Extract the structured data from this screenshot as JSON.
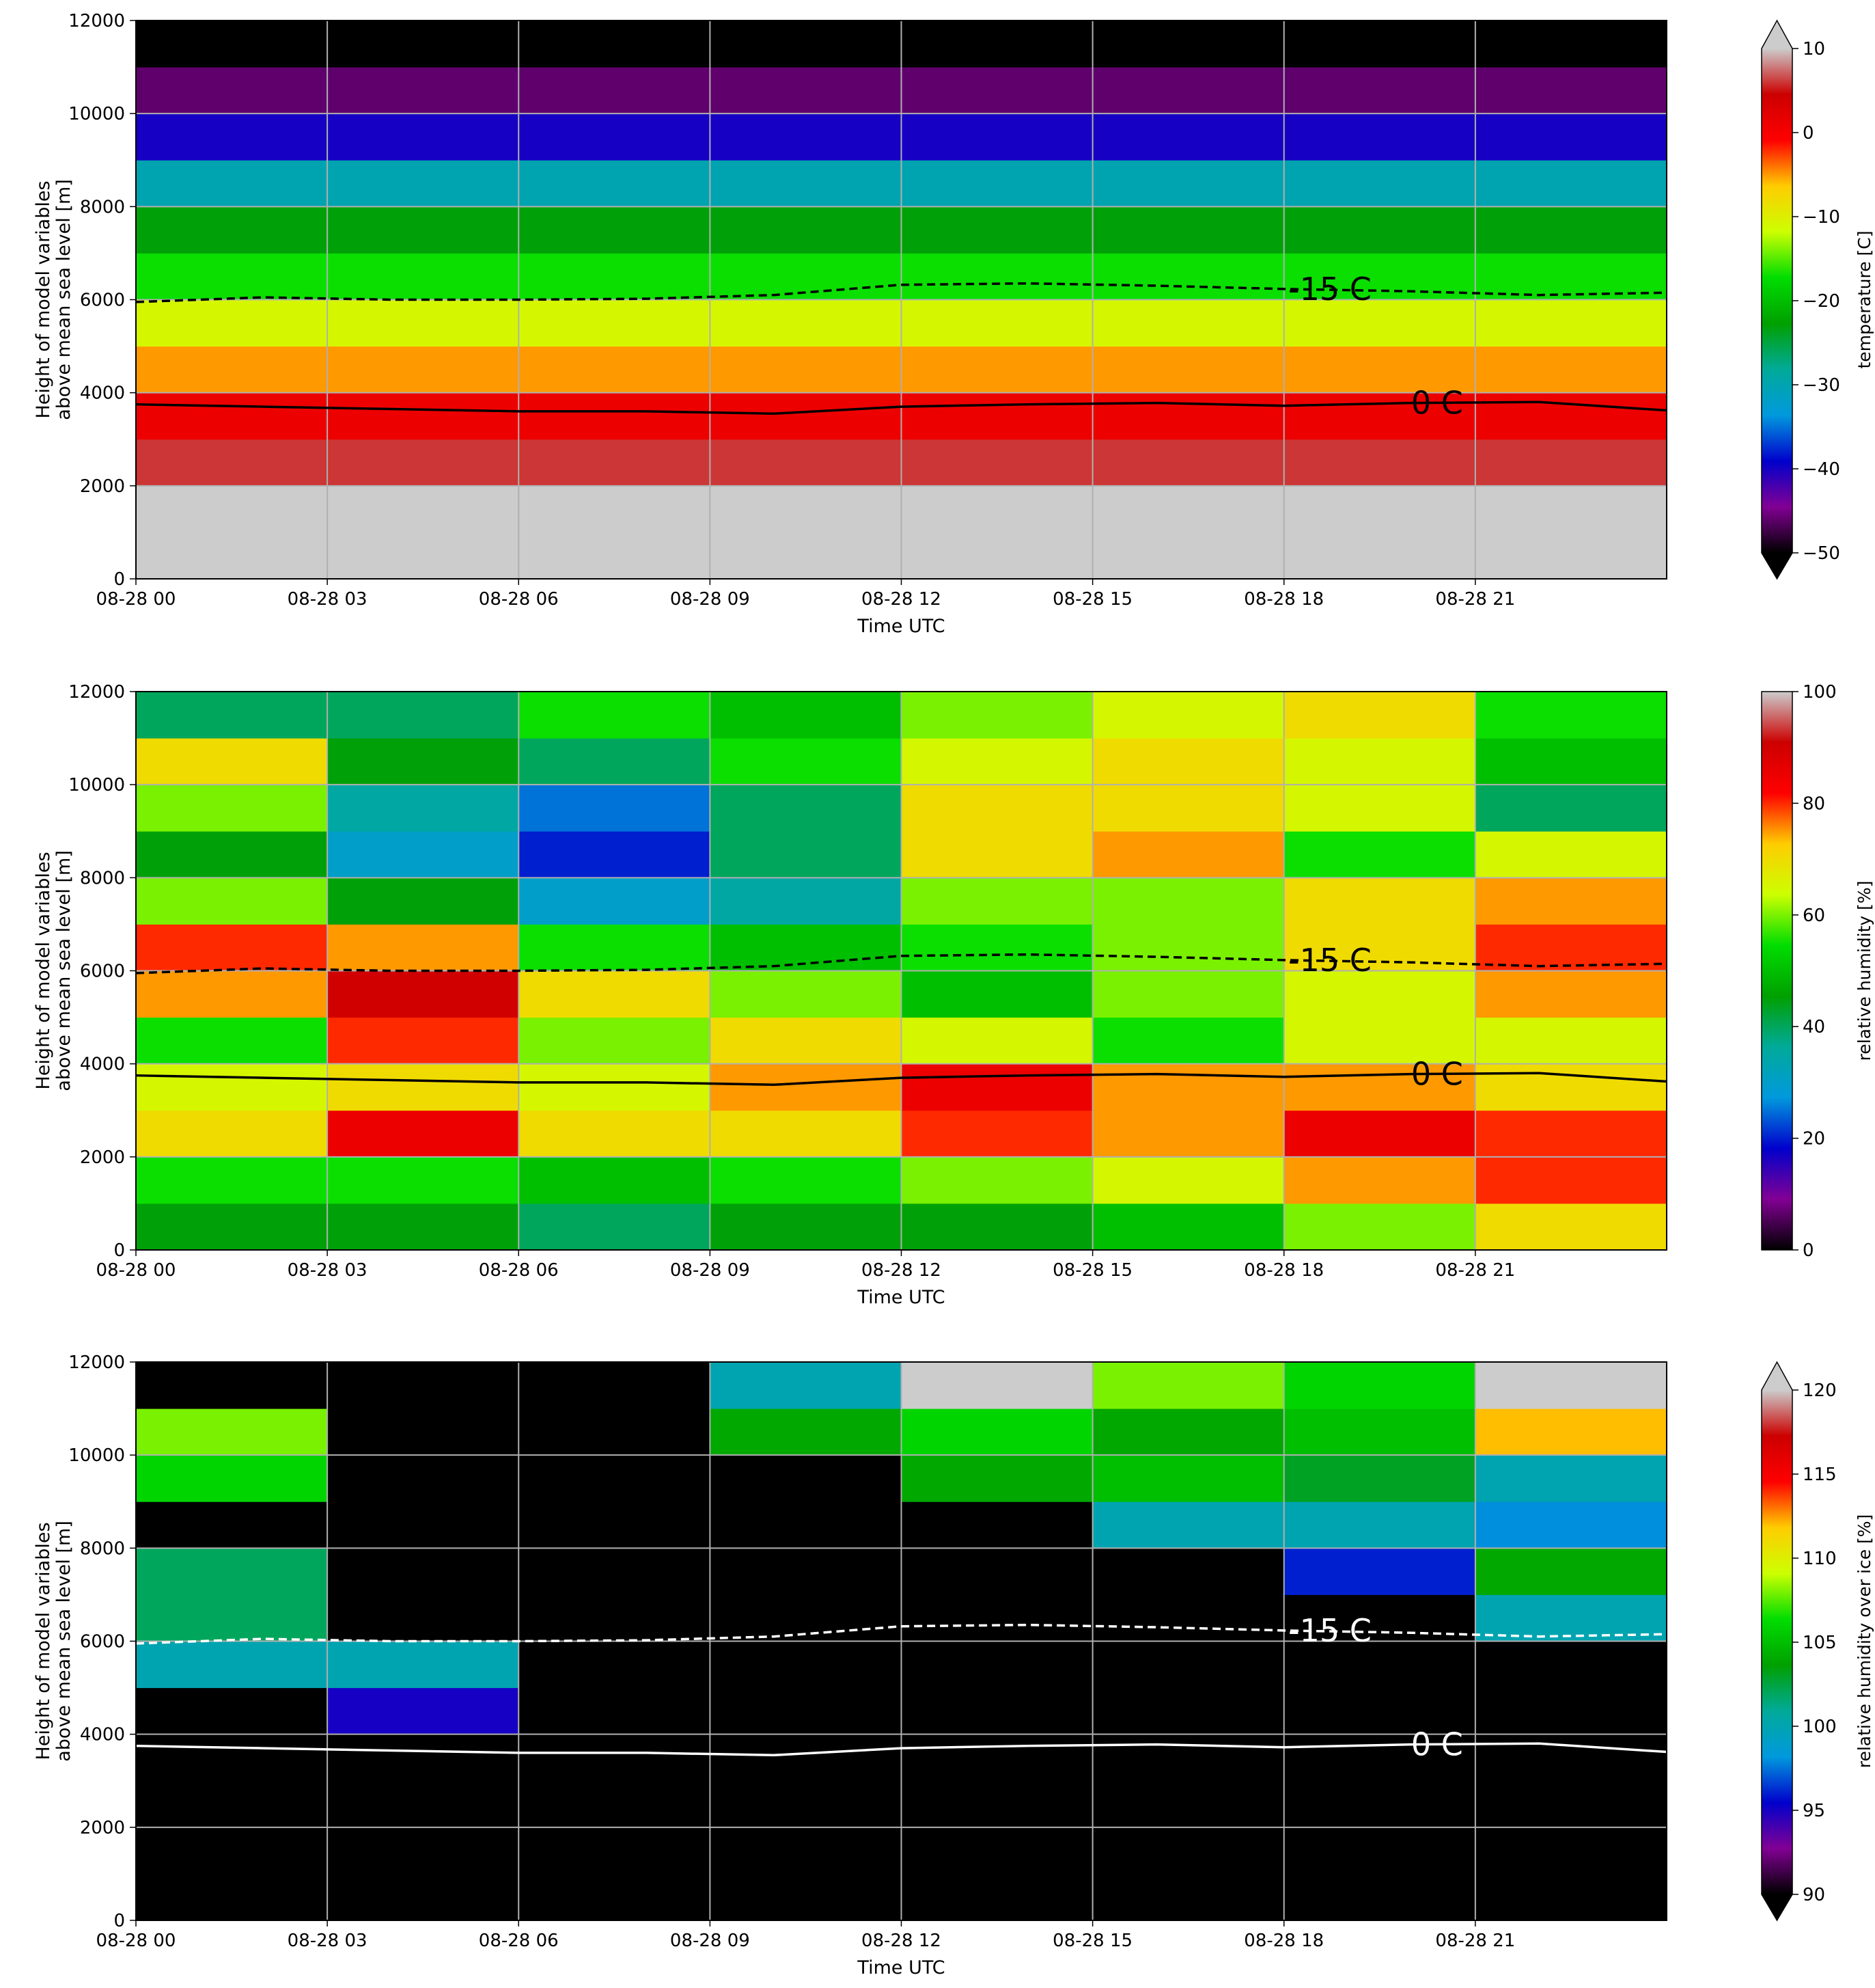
{
  "chart_data": [
    {
      "type": "heatmap",
      "xlabel": "Time UTC",
      "ylabel": [
        "Height of model variables",
        "above mean sea level [m]"
      ],
      "colorbar_label": "temperature [C]",
      "xlim": [
        0,
        24
      ],
      "ylim": [
        0,
        12000
      ],
      "xticks": [
        {
          "value": 0,
          "label": "08-28 00"
        },
        {
          "value": 3,
          "label": "08-28 03"
        },
        {
          "value": 6,
          "label": "08-28 06"
        },
        {
          "value": 9,
          "label": "08-28 09"
        },
        {
          "value": 12,
          "label": "08-28 12"
        },
        {
          "value": 15,
          "label": "08-28 15"
        },
        {
          "value": 18,
          "label": "08-28 18"
        },
        {
          "value": 21,
          "label": "08-28 21"
        }
      ],
      "yticks": [
        0,
        2000,
        4000,
        6000,
        8000,
        10000,
        12000
      ],
      "grid": true,
      "xbins": [
        0,
        3,
        6,
        9,
        12,
        15,
        18,
        21,
        24
      ],
      "ybins": [
        0,
        1000,
        2000,
        3000,
        4000,
        5000,
        6000,
        7000,
        8000,
        9000,
        10000,
        11000,
        12000
      ],
      "values": [
        [
          15,
          15,
          15,
          15,
          15,
          15,
          15,
          15
        ],
        [
          12,
          12,
          12,
          12,
          12,
          12,
          12,
          12
        ],
        [
          6,
          6,
          6,
          6,
          6,
          6,
          6,
          6
        ],
        [
          1,
          1,
          1,
          1,
          1,
          1,
          1,
          1
        ],
        [
          -5,
          -5,
          -5,
          -5,
          -5,
          -5,
          -5,
          -5
        ],
        [
          -11,
          -11,
          -11,
          -11,
          -11,
          -11,
          -11,
          -11
        ],
        [
          -17,
          -17,
          -17,
          -17,
          -17,
          -17,
          -17,
          -17
        ],
        [
          -23,
          -23,
          -23,
          -23,
          -23,
          -23,
          -23,
          -23
        ],
        [
          -30,
          -30,
          -30,
          -30,
          -30,
          -30,
          -30,
          -30
        ],
        [
          -40,
          -40,
          -40,
          -40,
          -40,
          -40,
          -40,
          -40
        ],
        [
          -46,
          -46,
          -46,
          -46,
          -46,
          -46,
          -46,
          -46
        ],
        [
          -55,
          -55,
          -55,
          -55,
          -55,
          -55,
          -55,
          -55
        ]
      ],
      "clim": [
        -50,
        10
      ],
      "cticks": [
        {
          "value": -50,
          "label": "−50"
        },
        {
          "value": -40,
          "label": "−40"
        },
        {
          "value": -30,
          "label": "−30"
        },
        {
          "value": -20,
          "label": "−20"
        },
        {
          "value": -10,
          "label": "−10"
        },
        0,
        10
      ],
      "extend": "both",
      "over_color": "#cccccc",
      "under_color": "#000000",
      "colormap": [
        "#000000",
        "#820094",
        "#0000cc",
        "#0099dd",
        "#00aa99",
        "#00a000",
        "#00dd00",
        "#ccff00",
        "#ffcc00",
        "#ff0000",
        "#cc0000",
        "#cccccc"
      ],
      "contours": [
        {
          "label": "-15 C",
          "style": "dashed",
          "color": "#000000",
          "x": [
            0,
            2,
            4,
            6,
            8,
            10,
            12,
            14,
            16,
            18,
            20,
            22,
            24
          ],
          "values": [
            5950,
            6050,
            6000,
            6000,
            6020,
            6100,
            6320,
            6350,
            6300,
            6230,
            6180,
            6100,
            6150
          ]
        },
        {
          "label": "0 C",
          "style": "solid",
          "color": "#000000",
          "x": [
            0,
            2,
            4,
            6,
            8,
            10,
            12,
            14,
            16,
            18,
            20,
            22,
            24
          ],
          "values": [
            3750,
            3700,
            3650,
            3600,
            3600,
            3550,
            3700,
            3750,
            3780,
            3720,
            3780,
            3800,
            3620
          ]
        }
      ]
    },
    {
      "type": "heatmap",
      "xlabel": "Time UTC",
      "ylabel": [
        "Height of model variables",
        "above mean sea level [m]"
      ],
      "colorbar_label": "relative humidity [%]",
      "xlim": [
        0,
        24
      ],
      "ylim": [
        0,
        12000
      ],
      "xticks": [
        {
          "value": 0,
          "label": "08-28 00"
        },
        {
          "value": 3,
          "label": "08-28 03"
        },
        {
          "value": 6,
          "label": "08-28 06"
        },
        {
          "value": 9,
          "label": "08-28 09"
        },
        {
          "value": 12,
          "label": "08-28 12"
        },
        {
          "value": 15,
          "label": "08-28 15"
        },
        {
          "value": 18,
          "label": "08-28 18"
        },
        {
          "value": 21,
          "label": "08-28 21"
        }
      ],
      "yticks": [
        0,
        2000,
        4000,
        6000,
        8000,
        10000,
        12000
      ],
      "grid": true,
      "xbins": [
        0,
        3,
        6,
        9,
        12,
        15,
        18,
        21,
        24
      ],
      "ybins": [
        0,
        1000,
        2000,
        3000,
        4000,
        5000,
        6000,
        7000,
        8000,
        9000,
        10000,
        11000,
        12000
      ],
      "values": [
        [
          45,
          45,
          40,
          45,
          45,
          50,
          60,
          70
        ],
        [
          55,
          55,
          50,
          55,
          60,
          65,
          75,
          80
        ],
        [
          70,
          85,
          70,
          70,
          80,
          75,
          85,
          80
        ],
        [
          65,
          70,
          65,
          75,
          85,
          75,
          75,
          70
        ],
        [
          55,
          80,
          60,
          70,
          65,
          55,
          65,
          65
        ],
        [
          75,
          90,
          70,
          60,
          50,
          60,
          65,
          75
        ],
        [
          80,
          75,
          55,
          50,
          55,
          60,
          70,
          80
        ],
        [
          60,
          45,
          30,
          35,
          60,
          60,
          70,
          75
        ],
        [
          45,
          30,
          20,
          40,
          70,
          75,
          55,
          65
        ],
        [
          60,
          35,
          25,
          40,
          70,
          70,
          65,
          40
        ],
        [
          70,
          45,
          40,
          55,
          65,
          70,
          65,
          50
        ],
        [
          40,
          40,
          55,
          50,
          60,
          65,
          70,
          55
        ]
      ],
      "clim": [
        0,
        100
      ],
      "cticks": [
        0,
        20,
        40,
        60,
        80,
        100
      ],
      "extend": "neither",
      "colormap": [
        "#000000",
        "#820094",
        "#0000cc",
        "#0099dd",
        "#00aa99",
        "#00a000",
        "#00dd00",
        "#ccff00",
        "#ffcc00",
        "#ff0000",
        "#cc0000",
        "#cccccc"
      ],
      "contours": [
        {
          "label": "-15 C",
          "style": "dashed",
          "color": "#000000",
          "x": [
            0,
            2,
            4,
            6,
            8,
            10,
            12,
            14,
            16,
            18,
            20,
            22,
            24
          ],
          "values": [
            5950,
            6050,
            6000,
            6000,
            6020,
            6100,
            6320,
            6350,
            6300,
            6230,
            6180,
            6100,
            6150
          ]
        },
        {
          "label": "0 C",
          "style": "solid",
          "color": "#000000",
          "x": [
            0,
            2,
            4,
            6,
            8,
            10,
            12,
            14,
            16,
            18,
            20,
            22,
            24
          ],
          "values": [
            3750,
            3700,
            3650,
            3600,
            3600,
            3550,
            3700,
            3750,
            3780,
            3720,
            3780,
            3800,
            3620
          ]
        }
      ]
    },
    {
      "type": "heatmap",
      "xlabel": "Time UTC",
      "ylabel": [
        "Height of model variables",
        "above mean sea level [m]"
      ],
      "colorbar_label": "relative humidity over ice [%]",
      "xlim": [
        0,
        24
      ],
      "ylim": [
        0,
        12000
      ],
      "xticks": [
        {
          "value": 0,
          "label": "08-28 00"
        },
        {
          "value": 3,
          "label": "08-28 03"
        },
        {
          "value": 6,
          "label": "08-28 06"
        },
        {
          "value": 9,
          "label": "08-28 09"
        },
        {
          "value": 12,
          "label": "08-28 12"
        },
        {
          "value": 15,
          "label": "08-28 15"
        },
        {
          "value": 18,
          "label": "08-28 18"
        },
        {
          "value": 21,
          "label": "08-28 21"
        }
      ],
      "yticks": [
        0,
        2000,
        4000,
        6000,
        8000,
        10000,
        12000
      ],
      "grid": true,
      "xbins": [
        0,
        3,
        6,
        9,
        12,
        15,
        18,
        21,
        24
      ],
      "ybins": [
        0,
        1000,
        2000,
        3000,
        4000,
        5000,
        6000,
        7000,
        8000,
        9000,
        10000,
        11000,
        12000
      ],
      "values": [
        [
          80,
          80,
          80,
          80,
          80,
          80,
          80,
          80
        ],
        [
          80,
          80,
          80,
          80,
          80,
          80,
          80,
          80
        ],
        [
          80,
          80,
          80,
          80,
          80,
          80,
          80,
          80
        ],
        [
          80,
          80,
          80,
          80,
          80,
          80,
          80,
          80
        ],
        [
          80,
          95,
          80,
          80,
          80,
          80,
          80,
          80
        ],
        [
          100,
          100,
          80,
          80,
          80,
          80,
          80,
          80
        ],
        [
          102,
          80,
          80,
          80,
          80,
          80,
          80,
          100
        ],
        [
          102,
          80,
          80,
          80,
          80,
          80,
          96,
          104
        ],
        [
          80,
          80,
          80,
          80,
          80,
          100,
          100,
          98
        ],
        [
          106,
          80,
          80,
          80,
          104,
          105,
          103,
          100
        ],
        [
          108,
          80,
          80,
          104,
          106,
          104,
          105,
          112
        ],
        [
          80,
          80,
          80,
          100,
          122,
          108,
          106,
          122
        ]
      ],
      "clim": [
        90,
        120
      ],
      "cticks": [
        90,
        95,
        100,
        105,
        110,
        115,
        120
      ],
      "extend": "both",
      "over_color": "#cccccc",
      "under_color": "#000000",
      "colormap": [
        "#000000",
        "#820094",
        "#0000cc",
        "#0099dd",
        "#00aa99",
        "#00a000",
        "#00dd00",
        "#ccff00",
        "#ffcc00",
        "#ff0000",
        "#cc0000",
        "#cccccc"
      ],
      "contours": [
        {
          "label": "-15 C",
          "style": "dashed",
          "color": "#ffffff",
          "x": [
            0,
            2,
            4,
            6,
            8,
            10,
            12,
            14,
            16,
            18,
            20,
            22,
            24
          ],
          "values": [
            5950,
            6050,
            6000,
            6000,
            6020,
            6100,
            6320,
            6350,
            6300,
            6230,
            6180,
            6100,
            6150
          ]
        },
        {
          "label": "0 C",
          "style": "solid",
          "color": "#ffffff",
          "x": [
            0,
            2,
            4,
            6,
            8,
            10,
            12,
            14,
            16,
            18,
            20,
            22,
            24
          ],
          "values": [
            3750,
            3700,
            3650,
            3600,
            3600,
            3550,
            3700,
            3750,
            3780,
            3720,
            3780,
            3800,
            3620
          ]
        }
      ]
    }
  ]
}
